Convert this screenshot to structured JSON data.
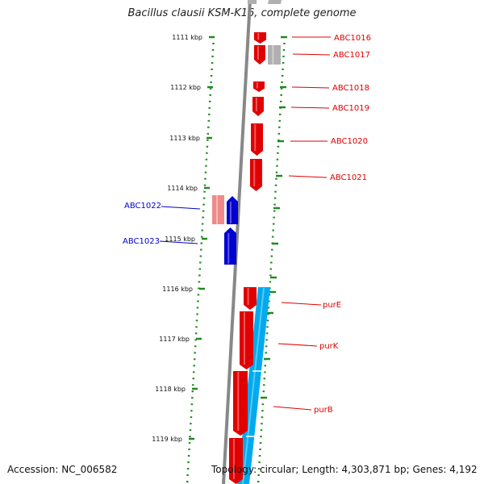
{
  "title": "Bacillus clausii KSM-K16, complete genome",
  "accession": "Accession: NC_006582",
  "summary": "Topology: circular; Length: 4,303,871 bp; Genes: 4,192",
  "scale_labels": [
    "1111 kbp",
    "1112 kbp",
    "1113 kbp",
    "1114 kbp",
    "1115 kbp",
    "1116 kbp",
    "1117 kbp",
    "1118 kbp",
    "1119 kbp"
  ],
  "genes": [
    {
      "name": "ABC1016",
      "strand": "+",
      "color": "#e00000"
    },
    {
      "name": "ABC1017",
      "strand": "+",
      "color": "#e00000"
    },
    {
      "name": "ABC1018",
      "strand": "+",
      "color": "#e00000"
    },
    {
      "name": "ABC1019",
      "strand": "+",
      "color": "#e00000"
    },
    {
      "name": "ABC1020",
      "strand": "+",
      "color": "#e00000"
    },
    {
      "name": "ABC1021",
      "strand": "+",
      "color": "#e00000"
    },
    {
      "name": "ABC1022",
      "strand": "-",
      "color": "#0000d0"
    },
    {
      "name": "ABC1023",
      "strand": "-",
      "color": "#0000d0"
    },
    {
      "name": "purE",
      "strand": "+",
      "color": "#e00000"
    },
    {
      "name": "purK",
      "strand": "+",
      "color": "#e00000"
    },
    {
      "name": "purB",
      "strand": "+",
      "color": "#e00000"
    }
  ],
  "colors": {
    "forward_gene": "#e00000",
    "reverse_gene": "#0000d0",
    "feature_pale_red": "#f08a8a",
    "feature_gray": "#b0b0b0",
    "feature_cyan": "#00aaee",
    "backbone": "#888888",
    "tick": "#228822"
  }
}
